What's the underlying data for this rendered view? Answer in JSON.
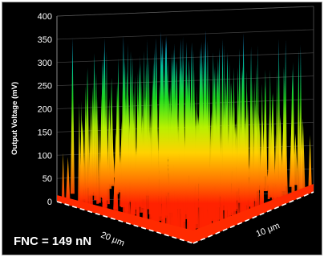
{
  "annotation": "FNC = 149 nN",
  "chart_data": {
    "type": "surface3d",
    "ylabel": "Output Voltage (mV)",
    "z_ticks": [
      0,
      50,
      100,
      150,
      200,
      250,
      300,
      350,
      400
    ],
    "zlim": [
      0,
      400
    ],
    "x_ticks": [
      "20 μm"
    ],
    "y_ticks": [
      "10 μm"
    ],
    "typical_peak_max_mV": 350,
    "baseline_mV": 0,
    "grid": true,
    "colormap": [
      "#ff2200",
      "#ff7a00",
      "#ffd200",
      "#b8f000",
      "#20e020",
      "#00d0a0",
      "#1ea0ff"
    ]
  }
}
